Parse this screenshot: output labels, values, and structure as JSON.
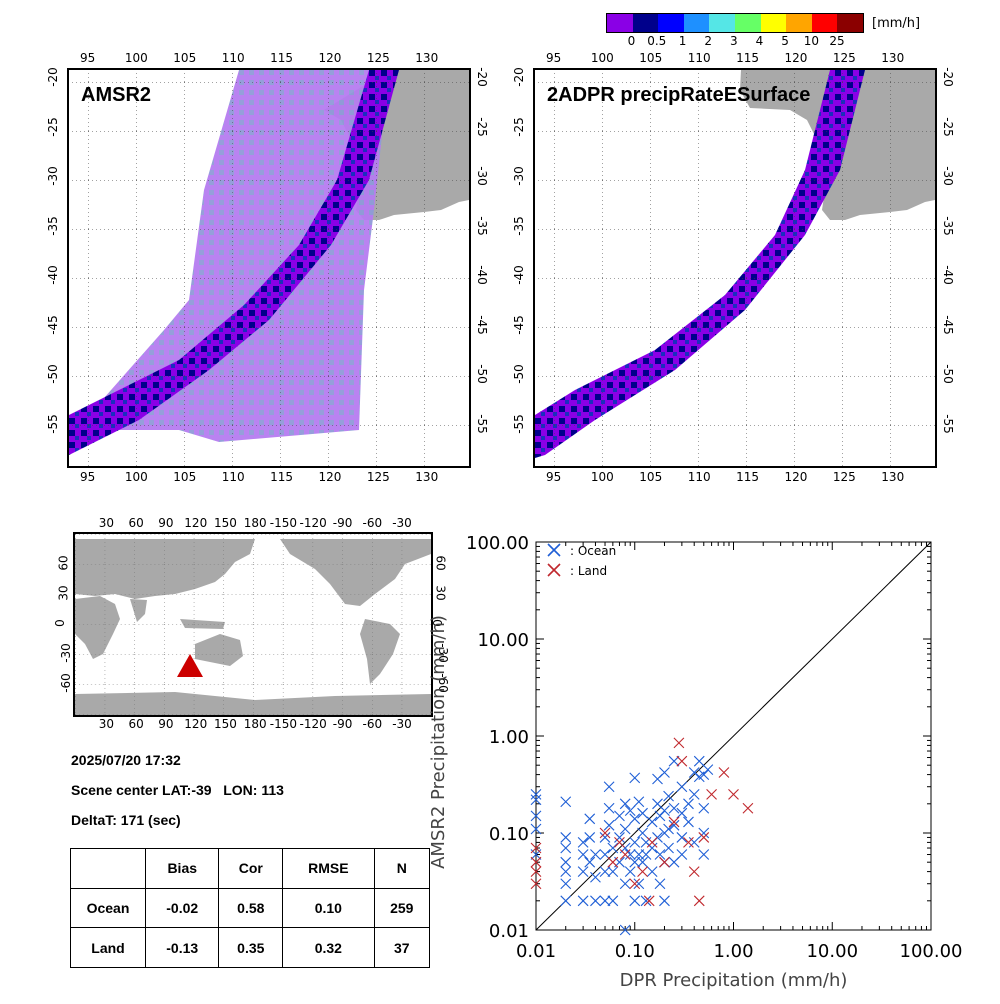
{
  "colorbar": {
    "colors": [
      "#8a00e6",
      "#00008b",
      "#0000ff",
      "#1e90ff",
      "#55e6e6",
      "#66ff66",
      "#ffff00",
      "#ffa500",
      "#ff0000",
      "#8b0000"
    ],
    "labels": [
      "0",
      "0.5",
      "1",
      "2",
      "3",
      "4",
      "5",
      "10",
      "25"
    ],
    "unit": "[mm/h]"
  },
  "map_left": {
    "title": "AMSR2",
    "lon_ticks": [
      "95",
      "100",
      "105",
      "110",
      "115",
      "120",
      "125",
      "130"
    ],
    "lat_ticks": [
      "-20",
      "-25",
      "-30",
      "-35",
      "-40",
      "-45",
      "-50",
      "-55"
    ]
  },
  "map_right": {
    "title": "2ADPR precipRateESurface",
    "lon_ticks": [
      "95",
      "100",
      "105",
      "110",
      "115",
      "120",
      "125",
      "130"
    ],
    "lat_ticks": [
      "-20",
      "-25",
      "-30",
      "-35",
      "-40",
      "-45",
      "-50",
      "-55"
    ]
  },
  "globe": {
    "lon_ticks": [
      "30",
      "60",
      "90",
      "120",
      "150",
      "180",
      "-150",
      "-120",
      "-90",
      "-60",
      "-30"
    ],
    "lat_ticks": [
      "60",
      "30",
      "0",
      "-30",
      "-60"
    ],
    "marker_color": "#cc0000"
  },
  "info": {
    "datetime": "2025/07/20 17:32",
    "scene_center": "Scene center LAT:-39   LON: 113",
    "deltat": "DeltaT:  171 (sec)"
  },
  "stats": {
    "headers": [
      "",
      "Bias",
      "Cor",
      "RMSE",
      "N"
    ],
    "rows": [
      [
        "Ocean",
        "-0.02",
        "0.58",
        "0.10",
        "259"
      ],
      [
        "Land",
        "-0.13",
        "0.35",
        "0.32",
        "37"
      ]
    ]
  },
  "chart_data": {
    "type": "scatter",
    "xlabel": "DPR Precipitation (mm/h)",
    "ylabel": "AMSR2 Precipitation (mm/h)",
    "xscale": "log",
    "yscale": "log",
    "xlim": [
      0.01,
      100
    ],
    "ylim": [
      0.01,
      100
    ],
    "x_tick_labels": [
      "0.01",
      "0.10",
      "1.00",
      "10.00",
      "100.00"
    ],
    "y_tick_labels": [
      "0.01",
      "0.10",
      "1.00",
      "10.00",
      "100.00"
    ],
    "legend_position": "top-left",
    "one_to_one_line": true,
    "series": [
      {
        "name": ": Ocean",
        "color": "#1f5fd6",
        "marker": "x",
        "points": [
          [
            0.01,
            0.25
          ],
          [
            0.01,
            0.22
          ],
          [
            0.01,
            0.15
          ],
          [
            0.01,
            0.11
          ],
          [
            0.01,
            0.06
          ],
          [
            0.02,
            0.21
          ],
          [
            0.02,
            0.09
          ],
          [
            0.02,
            0.07
          ],
          [
            0.02,
            0.05
          ],
          [
            0.02,
            0.04
          ],
          [
            0.02,
            0.03
          ],
          [
            0.02,
            0.02
          ],
          [
            0.03,
            0.08
          ],
          [
            0.03,
            0.06
          ],
          [
            0.03,
            0.04
          ],
          [
            0.03,
            0.02
          ],
          [
            0.035,
            0.14
          ],
          [
            0.035,
            0.09
          ],
          [
            0.035,
            0.05
          ],
          [
            0.04,
            0.06
          ],
          [
            0.04,
            0.035
          ],
          [
            0.04,
            0.02
          ],
          [
            0.05,
            0.09
          ],
          [
            0.05,
            0.06
          ],
          [
            0.05,
            0.04
          ],
          [
            0.05,
            0.02
          ],
          [
            0.055,
            0.3
          ],
          [
            0.055,
            0.18
          ],
          [
            0.055,
            0.12
          ],
          [
            0.06,
            0.07
          ],
          [
            0.06,
            0.04
          ],
          [
            0.06,
            0.02
          ],
          [
            0.07,
            0.15
          ],
          [
            0.07,
            0.09
          ],
          [
            0.07,
            0.05
          ],
          [
            0.08,
            0.2
          ],
          [
            0.08,
            0.11
          ],
          [
            0.08,
            0.07
          ],
          [
            0.08,
            0.03
          ],
          [
            0.08,
            0.01
          ],
          [
            0.09,
            0.17
          ],
          [
            0.09,
            0.06
          ],
          [
            0.09,
            0.04
          ],
          [
            0.1,
            0.37
          ],
          [
            0.1,
            0.14
          ],
          [
            0.1,
            0.08
          ],
          [
            0.1,
            0.05
          ],
          [
            0.1,
            0.02
          ],
          [
            0.11,
            0.21
          ],
          [
            0.11,
            0.06
          ],
          [
            0.11,
            0.03
          ],
          [
            0.12,
            0.16
          ],
          [
            0.12,
            0.1
          ],
          [
            0.12,
            0.05
          ],
          [
            0.13,
            0.08
          ],
          [
            0.13,
            0.06
          ],
          [
            0.13,
            0.02
          ],
          [
            0.15,
            0.13
          ],
          [
            0.15,
            0.07
          ],
          [
            0.15,
            0.04
          ],
          [
            0.17,
            0.36
          ],
          [
            0.17,
            0.2
          ],
          [
            0.17,
            0.09
          ],
          [
            0.18,
            0.15
          ],
          [
            0.18,
            0.06
          ],
          [
            0.18,
            0.03
          ],
          [
            0.2,
            0.42
          ],
          [
            0.2,
            0.17
          ],
          [
            0.2,
            0.1
          ],
          [
            0.2,
            0.05
          ],
          [
            0.2,
            0.02
          ],
          [
            0.22,
            0.24
          ],
          [
            0.22,
            0.11
          ],
          [
            0.22,
            0.07
          ],
          [
            0.25,
            0.55
          ],
          [
            0.25,
            0.18
          ],
          [
            0.25,
            0.12
          ],
          [
            0.25,
            0.05
          ],
          [
            0.3,
            0.3
          ],
          [
            0.3,
            0.16
          ],
          [
            0.3,
            0.09
          ],
          [
            0.3,
            0.06
          ],
          [
            0.35,
            0.2
          ],
          [
            0.35,
            0.13
          ],
          [
            0.4,
            0.42
          ],
          [
            0.4,
            0.25
          ],
          [
            0.4,
            0.08
          ],
          [
            0.45,
            0.55
          ],
          [
            0.45,
            0.38
          ],
          [
            0.5,
            0.4
          ],
          [
            0.5,
            0.18
          ],
          [
            0.5,
            0.1
          ],
          [
            0.5,
            0.06
          ],
          [
            0.55,
            0.45
          ]
        ]
      },
      {
        "name": ": Land",
        "color": "#c0282d",
        "marker": "x",
        "points": [
          [
            0.01,
            0.07
          ],
          [
            0.01,
            0.05
          ],
          [
            0.01,
            0.04
          ],
          [
            0.01,
            0.03
          ],
          [
            0.05,
            0.1
          ],
          [
            0.06,
            0.05
          ],
          [
            0.07,
            0.08
          ],
          [
            0.08,
            0.06
          ],
          [
            0.1,
            0.03
          ],
          [
            0.12,
            0.04
          ],
          [
            0.14,
            0.02
          ],
          [
            0.15,
            0.08
          ],
          [
            0.2,
            0.05
          ],
          [
            0.25,
            0.13
          ],
          [
            0.28,
            0.85
          ],
          [
            0.3,
            0.55
          ],
          [
            0.35,
            0.08
          ],
          [
            0.4,
            0.04
          ],
          [
            0.45,
            0.02
          ],
          [
            0.5,
            0.09
          ],
          [
            0.6,
            0.25
          ],
          [
            0.8,
            0.42
          ],
          [
            1.0,
            0.25
          ],
          [
            1.4,
            0.18
          ]
        ]
      }
    ]
  }
}
